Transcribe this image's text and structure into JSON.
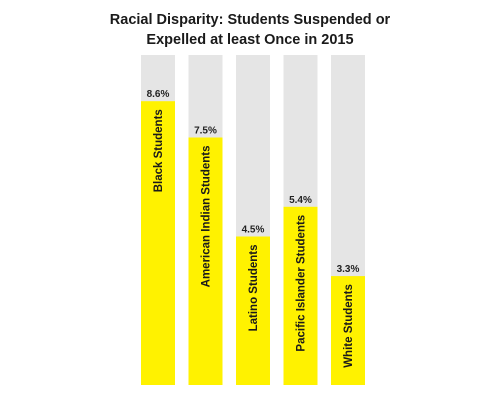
{
  "chart_data": {
    "type": "bar",
    "title_lines": [
      "Racial Disparity: Students Suspended or",
      "Expelled at least Once in 2015"
    ],
    "categories": [
      "Black Students",
      "American Indian Students",
      "Latino Students",
      "Pacific Islander Students",
      "White Students"
    ],
    "values": [
      8.6,
      7.5,
      4.5,
      5.4,
      3.3
    ],
    "value_labels": [
      "8.6%",
      "7.5%",
      "4.5%",
      "5.4%",
      "3.3%"
    ],
    "unit": "%",
    "ylim": [
      0,
      10
    ],
    "grid": false,
    "legend": "none",
    "colors": {
      "bar": "#fff200",
      "background_bar": "#e5e5e5",
      "text": "#1a1a1a"
    }
  }
}
